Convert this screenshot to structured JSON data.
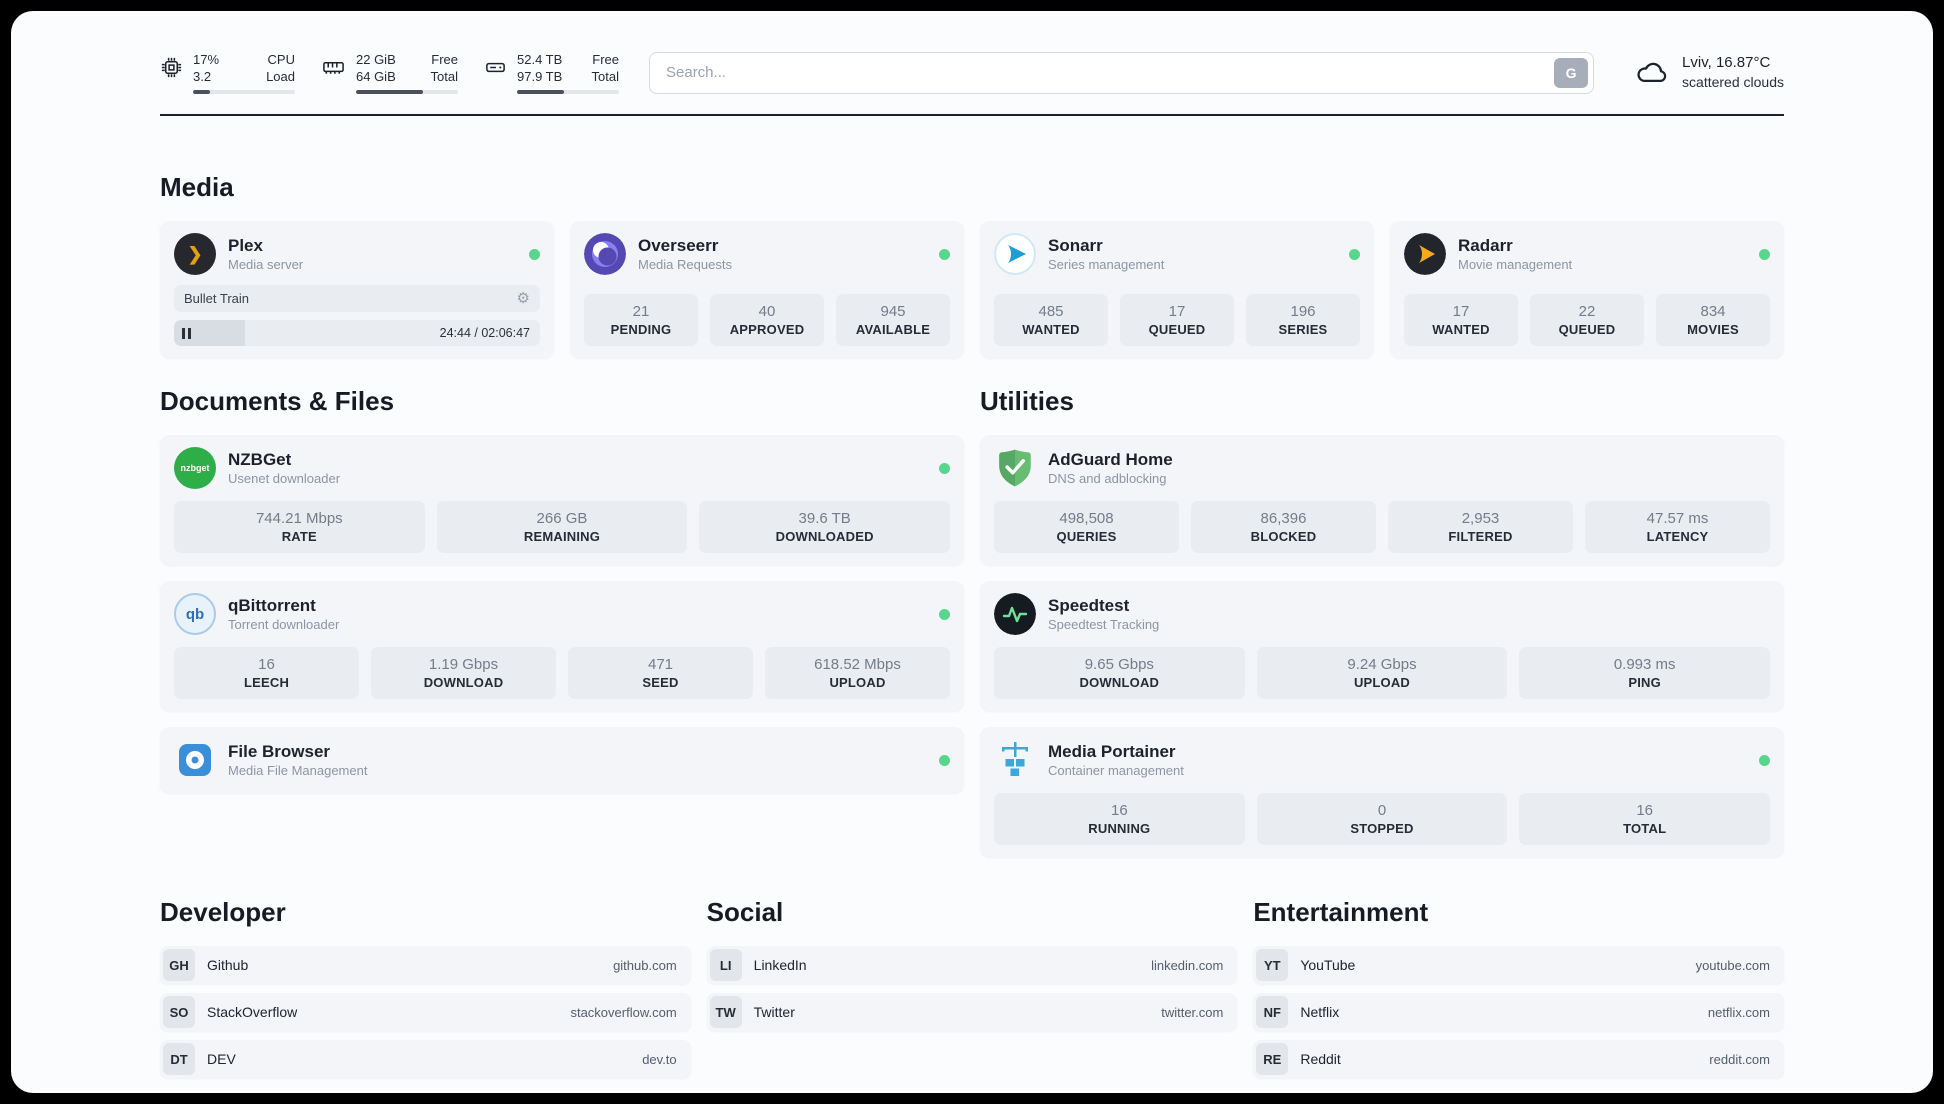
{
  "header": {
    "system": [
      {
        "top_value": "17%",
        "bottom_value": "3.2",
        "top_label": "CPU",
        "bottom_label": "Load",
        "progress_pct": 17
      },
      {
        "top_value": "22 GiB",
        "bottom_value": "64 GiB",
        "top_label": "Free",
        "bottom_label": "Total",
        "progress_pct": 66
      },
      {
        "top_value": "52.4 TB",
        "bottom_value": "97.9 TB",
        "top_label": "Free",
        "bottom_label": "Total",
        "progress_pct": 46
      }
    ],
    "search": {
      "placeholder": "Search...",
      "button": "G"
    },
    "weather": {
      "location": "Lviv, 16.87°C",
      "condition": "scattered clouds"
    }
  },
  "sections": {
    "media": {
      "title": "Media",
      "plex": {
        "name": "Plex",
        "subtitle": "Media server",
        "icon_glyph": "❯",
        "now_playing": "Bullet Train",
        "time": "24:44 / 02:06:47",
        "progress_pct": 19.5
      },
      "cards": [
        {
          "name": "Overseerr",
          "subtitle": "Media Requests",
          "stats": [
            {
              "value": "21",
              "label": "PENDING"
            },
            {
              "value": "40",
              "label": "APPROVED"
            },
            {
              "value": "945",
              "label": "AVAILABLE"
            }
          ]
        },
        {
          "name": "Sonarr",
          "subtitle": "Series management",
          "stats": [
            {
              "value": "485",
              "label": "WANTED"
            },
            {
              "value": "17",
              "label": "QUEUED"
            },
            {
              "value": "196",
              "label": "SERIES"
            }
          ]
        },
        {
          "name": "Radarr",
          "subtitle": "Movie management",
          "stats": [
            {
              "value": "17",
              "label": "WANTED"
            },
            {
              "value": "22",
              "label": "QUEUED"
            },
            {
              "value": "834",
              "label": "MOVIES"
            }
          ]
        }
      ]
    },
    "documents": {
      "title": "Documents & Files",
      "cards": [
        {
          "name": "NZBGet",
          "subtitle": "Usenet downloader",
          "icon_text": "nzbget",
          "stats": [
            {
              "value": "744.21 Mbps",
              "label": "RATE"
            },
            {
              "value": "266 GB",
              "label": "REMAINING"
            },
            {
              "value": "39.6 TB",
              "label": "DOWNLOADED"
            }
          ]
        },
        {
          "name": "qBittorrent",
          "subtitle": "Torrent downloader",
          "icon_text": "qb",
          "stats": [
            {
              "value": "16",
              "label": "LEECH"
            },
            {
              "value": "1.19 Gbps",
              "label": "DOWNLOAD"
            },
            {
              "value": "471",
              "label": "SEED"
            },
            {
              "value": "618.52 Mbps",
              "label": "UPLOAD"
            }
          ]
        },
        {
          "name": "File Browser",
          "subtitle": "Media File Management",
          "stats": []
        }
      ]
    },
    "utilities": {
      "title": "Utilities",
      "cards": [
        {
          "name": "AdGuard Home",
          "subtitle": "DNS and adblocking",
          "stats": [
            {
              "value": "498,508",
              "label": "QUERIES"
            },
            {
              "value": "86,396",
              "label": "BLOCKED"
            },
            {
              "value": "2,953",
              "label": "FILTERED"
            },
            {
              "value": "47.57 ms",
              "label": "LATENCY"
            }
          ]
        },
        {
          "name": "Speedtest",
          "subtitle": "Speedtest Tracking",
          "stats": [
            {
              "value": "9.65 Gbps",
              "label": "DOWNLOAD"
            },
            {
              "value": "9.24 Gbps",
              "label": "UPLOAD"
            },
            {
              "value": "0.993 ms",
              "label": "PING"
            }
          ]
        },
        {
          "name": "Media Portainer",
          "subtitle": "Container management",
          "stats": [
            {
              "value": "16",
              "label": "RUNNING"
            },
            {
              "value": "0",
              "label": "STOPPED"
            },
            {
              "value": "16",
              "label": "TOTAL"
            }
          ]
        }
      ]
    },
    "bookmarks": [
      {
        "title": "Developer",
        "items": [
          {
            "badge": "GH",
            "name": "Github",
            "url": "github.com"
          },
          {
            "badge": "SO",
            "name": "StackOverflow",
            "url": "stackoverflow.com"
          },
          {
            "badge": "DT",
            "name": "DEV",
            "url": "dev.to"
          }
        ]
      },
      {
        "title": "Social",
        "items": [
          {
            "badge": "LI",
            "name": "LinkedIn",
            "url": "linkedin.com"
          },
          {
            "badge": "TW",
            "name": "Twitter",
            "url": "twitter.com"
          }
        ]
      },
      {
        "title": "Entertainment",
        "items": [
          {
            "badge": "YT",
            "name": "YouTube",
            "url": "youtube.com"
          },
          {
            "badge": "NF",
            "name": "Netflix",
            "url": "netflix.com"
          },
          {
            "badge": "RE",
            "name": "Reddit",
            "url": "reddit.com"
          }
        ]
      }
    ]
  },
  "colors": {
    "status_green": "#58d68d",
    "divider": "#1d212b",
    "card_bg": "#f3f5f8",
    "stat_bg": "#e9ecf1",
    "plex_amber": "#e5a00d",
    "sonarr_blue": "#1c9fd4",
    "radarr_amber": "#f7a81b",
    "adguard_green": "#68bd73",
    "portainer_blue": "#3aa7de"
  }
}
